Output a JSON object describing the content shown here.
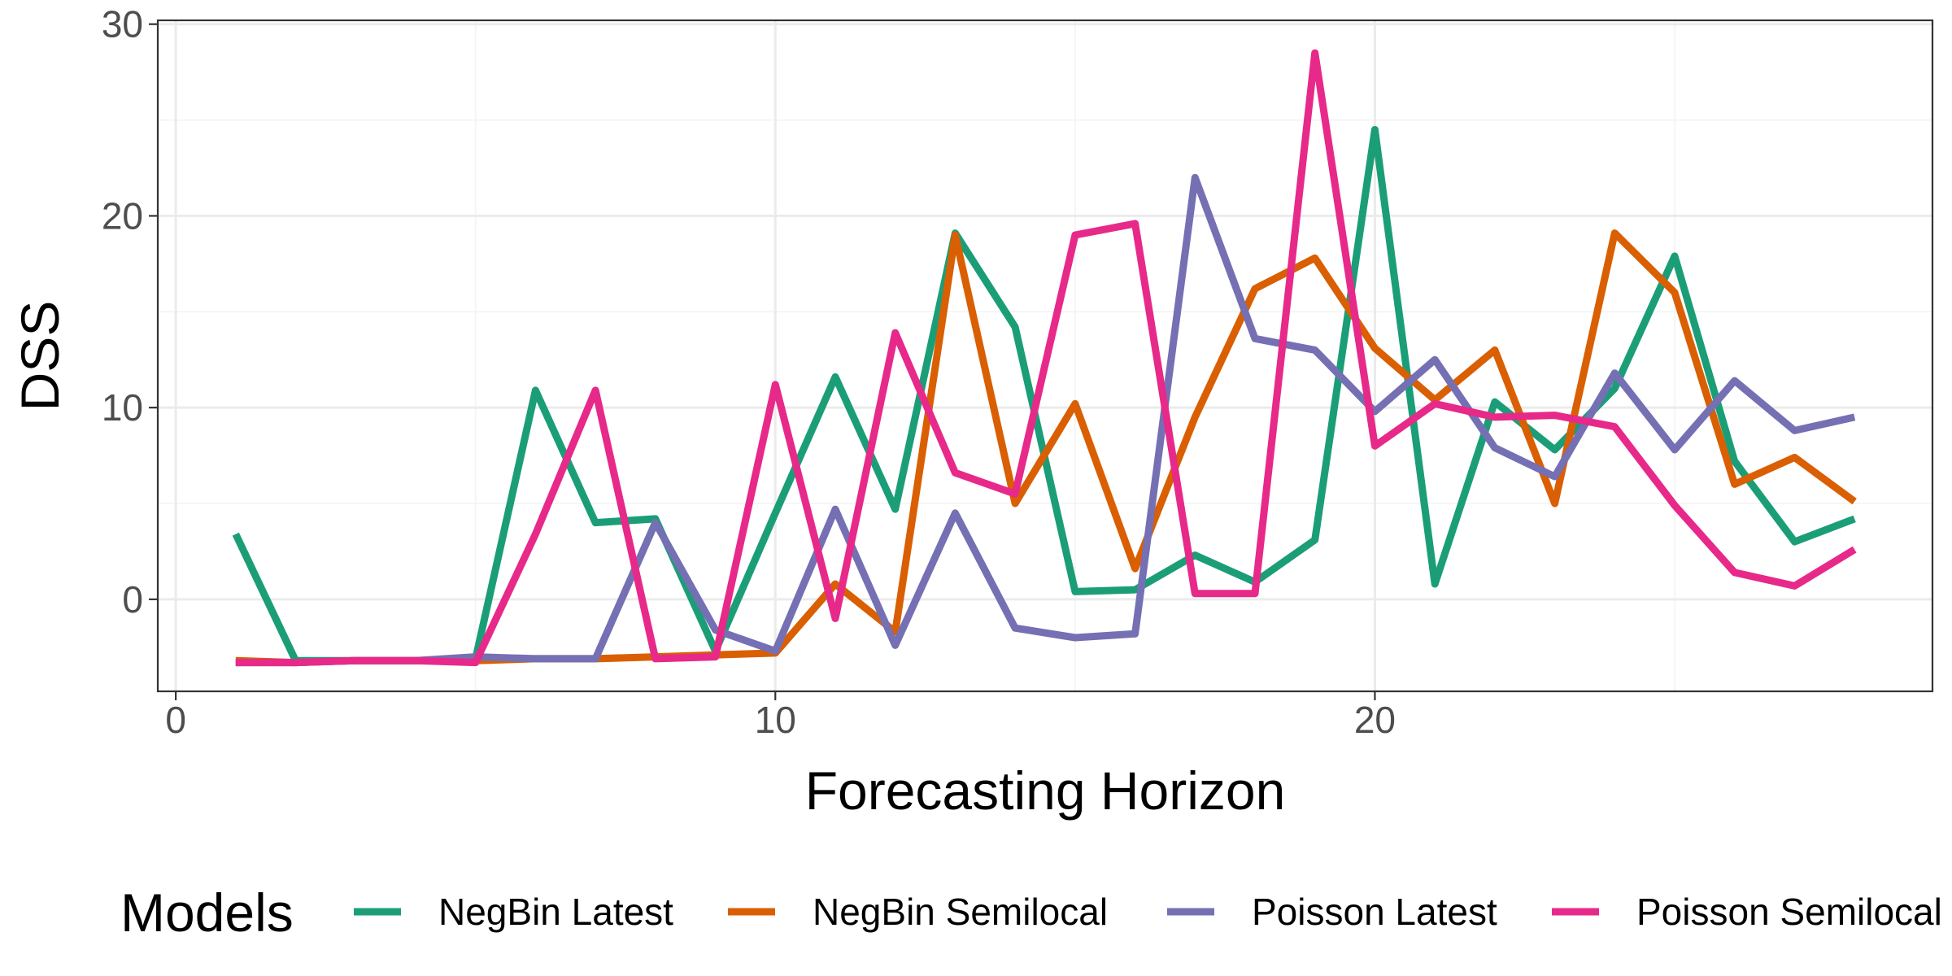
{
  "chart_data": {
    "type": "line",
    "title": "",
    "xlabel": "Forecasting Horizon",
    "ylabel": "DSS",
    "xlim": [
      -0.3,
      29.3
    ],
    "ylim": [
      -4.8,
      30.2
    ],
    "x_ticks": [
      0,
      10,
      20
    ],
    "y_ticks": [
      0,
      10,
      20,
      30
    ],
    "grid": true,
    "legend": {
      "title": "Models",
      "position": "bottom"
    },
    "x": [
      1,
      2,
      3,
      4,
      5,
      6,
      7,
      8,
      9,
      10,
      11,
      12,
      13,
      14,
      15,
      16,
      17,
      18,
      19,
      20,
      21,
      22,
      23,
      24,
      25,
      26,
      27,
      28
    ],
    "series": [
      {
        "name": "NegBin Latest",
        "color": "#1b9e77",
        "values": [
          3.4,
          -3.2,
          -3.2,
          -3.2,
          -3.1,
          10.9,
          4.0,
          4.2,
          -2.7,
          4.5,
          11.6,
          4.7,
          19.1,
          14.2,
          0.4,
          0.5,
          2.3,
          0.9,
          3.1,
          24.5,
          0.8,
          10.3,
          7.8,
          11.0,
          17.9,
          7.2,
          3.0,
          4.2
        ]
      },
      {
        "name": "NegBin Semilocal",
        "color": "#d95f02",
        "values": [
          -3.2,
          -3.3,
          -3.2,
          -3.2,
          -3.2,
          -3.1,
          -3.1,
          -3.0,
          -2.9,
          -2.8,
          0.8,
          -1.7,
          19.0,
          5.0,
          10.2,
          1.6,
          9.5,
          16.2,
          17.8,
          13.1,
          10.4,
          13.0,
          5.0,
          19.1,
          16.0,
          6.0,
          7.4,
          5.1
        ]
      },
      {
        "name": "Poisson Latest",
        "color": "#7570b3",
        "values": [
          -3.3,
          -3.3,
          -3.2,
          -3.2,
          -3.0,
          -3.1,
          -3.1,
          4.0,
          -1.6,
          -2.7,
          4.7,
          -2.4,
          4.5,
          -1.5,
          -2.0,
          -1.8,
          22.0,
          13.6,
          13.0,
          9.8,
          12.5,
          7.9,
          6.4,
          11.8,
          7.8,
          11.4,
          8.8,
          9.5
        ]
      },
      {
        "name": "Poisson Semilocal",
        "color": "#e7298a",
        "values": [
          -3.3,
          -3.3,
          -3.2,
          -3.2,
          -3.3,
          3.4,
          10.9,
          -3.1,
          -3.0,
          11.2,
          -1.0,
          13.9,
          6.6,
          5.5,
          19.0,
          19.6,
          0.3,
          0.3,
          28.5,
          8.0,
          10.2,
          9.5,
          9.6,
          9.0,
          4.9,
          1.4,
          0.7,
          2.6
        ]
      }
    ]
  }
}
